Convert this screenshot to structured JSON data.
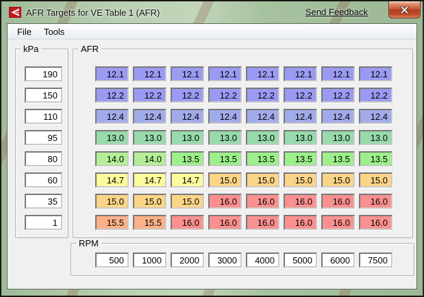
{
  "window": {
    "title": "AFR Targets for VE Table 1 (AFR)",
    "send_feedback_label": "Send Feedback"
  },
  "menu": {
    "items": [
      "File",
      "Tools"
    ]
  },
  "kpa": {
    "label": "kPa",
    "values": [
      "190",
      "150",
      "110",
      "95",
      "80",
      "60",
      "35",
      "1"
    ]
  },
  "afr": {
    "label": "AFR",
    "rows": [
      [
        "12.1",
        "12.1",
        "12.1",
        "12.1",
        "12.1",
        "12.1",
        "12.1",
        "12.1"
      ],
      [
        "12.2",
        "12.2",
        "12.2",
        "12.2",
        "12.2",
        "12.2",
        "12.2",
        "12.2"
      ],
      [
        "12.4",
        "12.4",
        "12.4",
        "12.4",
        "12.4",
        "12.4",
        "12.4",
        "12.4"
      ],
      [
        "13.0",
        "13.0",
        "13.0",
        "13.0",
        "13.0",
        "13.0",
        "13.0",
        "13.0"
      ],
      [
        "14.0",
        "14.0",
        "13.5",
        "13.5",
        "13.5",
        "13.5",
        "13.5",
        "13.5"
      ],
      [
        "14.7",
        "14.7",
        "14.7",
        "15.0",
        "15.0",
        "15.0",
        "15.0",
        "15.0"
      ],
      [
        "15.0",
        "15.0",
        "15.0",
        "16.0",
        "16.0",
        "16.0",
        "16.0",
        "16.0"
      ],
      [
        "15.5",
        "15.5",
        "16.0",
        "16.0",
        "16.0",
        "16.0",
        "16.0",
        "16.0"
      ]
    ]
  },
  "rpm": {
    "label": "RPM",
    "values": [
      "500",
      "1000",
      "2000",
      "3000",
      "4000",
      "5000",
      "6000",
      "7500"
    ]
  },
  "colors": {
    "value_colors": {
      "12.1": "#9b9af3",
      "12.2": "#9b9af3",
      "12.4": "#a2abe9",
      "13.0": "#98daab",
      "13.5": "#9cef8a",
      "14.0": "#b4ef97",
      "14.7": "#fbfb9b",
      "15.0": "#fbd488",
      "15.5": "#fbb088",
      "16.0": "#fb9090"
    },
    "titlebar_glass": "#aec8a7",
    "client_bg": "#f0f0f0",
    "close_button_red": "#b23a20"
  }
}
